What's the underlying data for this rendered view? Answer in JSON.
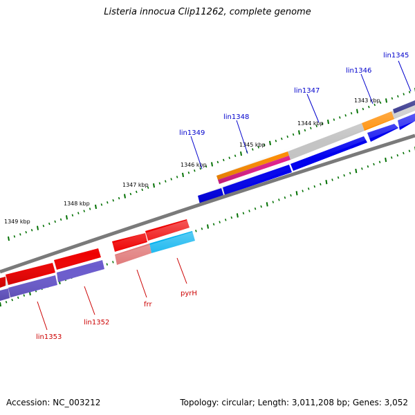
{
  "title": "Listeria innocua Clip11262, complete genome",
  "footer": {
    "accession": "Accession: NC_003212",
    "stats": "Topology: circular; Length: 3,011,208 bp; Genes: 3,052"
  },
  "colors": {
    "backbone": "#808080",
    "tick": "#007000",
    "label_forward": "#0000cc",
    "label_reverse": "#cc0000",
    "gene_blue": "#0000ee",
    "gene_red": "#ee0000",
    "gene_purple": "#6a5acd",
    "gene_orange": "#ff8c00",
    "gene_magenta": "#e0208c",
    "gene_gray": "#bdbdbd",
    "gene_navy": "#00006e",
    "gene_cyan": "#00b0ee",
    "gene_pink": "#e07a7a"
  },
  "scale_labels": [
    "1343 kbp",
    "1344 kbp",
    "1345 kbp",
    "1346 kbp",
    "1347 kbp",
    "1348 kbp",
    "1349 kbp"
  ],
  "forward_gene_labels": [
    "lin1345",
    "lin1346",
    "lin1347",
    "lin1348",
    "lin1349"
  ],
  "reverse_gene_labels": [
    "pyrH",
    "frr",
    "lin1352",
    "lin1353"
  ]
}
